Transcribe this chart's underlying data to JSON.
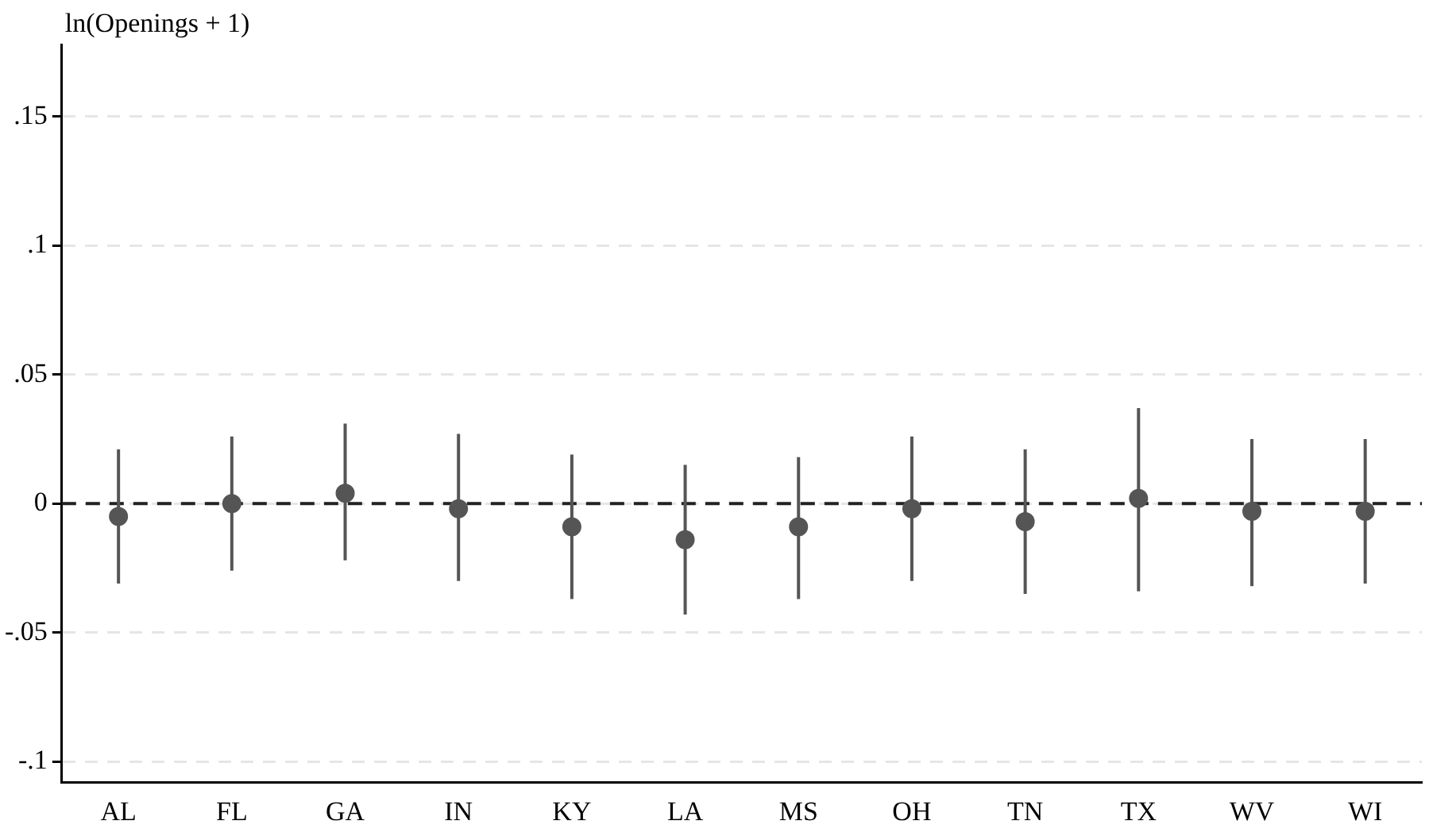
{
  "chart_data": {
    "type": "scatter",
    "ylabel": "ln(Openings + 1)",
    "categories": [
      "AL",
      "FL",
      "GA",
      "IN",
      "KY",
      "LA",
      "MS",
      "OH",
      "TN",
      "TX",
      "WV",
      "WI"
    ],
    "values": [
      -0.005,
      0.0,
      0.004,
      -0.002,
      -0.009,
      -0.014,
      -0.009,
      -0.002,
      -0.007,
      0.002,
      -0.003,
      -0.003
    ],
    "errors": [
      [
        -0.031,
        0.021
      ],
      [
        -0.026,
        0.026
      ],
      [
        -0.022,
        0.031
      ],
      [
        -0.03,
        0.027
      ],
      [
        -0.037,
        0.019
      ],
      [
        -0.043,
        0.015
      ],
      [
        -0.037,
        0.018
      ],
      [
        -0.03,
        0.026
      ],
      [
        -0.035,
        0.021
      ],
      [
        -0.034,
        0.037
      ],
      [
        -0.032,
        0.025
      ],
      [
        -0.031,
        0.025
      ]
    ],
    "color": "#555555",
    "marker": "circle",
    "ylim": [
      -0.108,
      0.178
    ],
    "yticks": [
      {
        "value": -0.1,
        "label": "-.1"
      },
      {
        "value": -0.05,
        "label": "-.05"
      },
      0,
      {
        "value": 0.05,
        "label": ".05"
      },
      {
        "value": 0.1,
        "label": ".1"
      },
      {
        "value": 0.15,
        "label": ".15"
      }
    ],
    "ref_lines": [
      {
        "axis": "y",
        "value": 0,
        "color": "#222222",
        "line_style": "dashed"
      }
    ],
    "grid": "y"
  }
}
